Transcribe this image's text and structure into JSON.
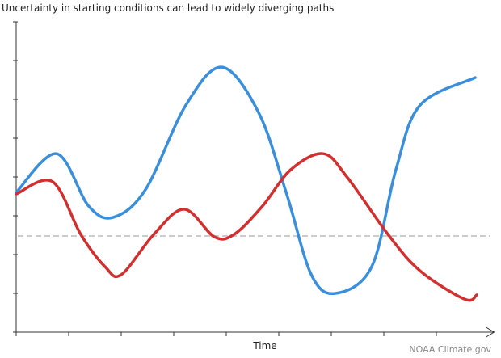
{
  "chart_data": {
    "type": "line",
    "title": "Uncertainty in starting conditions can lead to widely diverging paths",
    "x_label": "Time",
    "credit": "NOAA Climate.gov",
    "xlim": [
      0,
      9.1
    ],
    "xticks": [
      0,
      1,
      2,
      3,
      4,
      5,
      6,
      7,
      8
    ],
    "ylim": [
      0,
      8
    ],
    "yticks": [
      0,
      1,
      2,
      3,
      4,
      5,
      6,
      7,
      8
    ],
    "reference_line": {
      "value": 2.48,
      "color": "#bbbbbb"
    },
    "series": [
      {
        "color": "#3a8fdc",
        "x": [
          0,
          0.77,
          1.38,
          1.85,
          2.46,
          3.23,
          3.92,
          4.62,
          5.15,
          5.62,
          6.08,
          6.77,
          7.23,
          7.69,
          8.74
        ],
        "values": [
          3.6,
          4.6,
          3.25,
          2.96,
          3.67,
          5.85,
          6.83,
          5.65,
          3.56,
          1.48,
          1.0,
          1.69,
          4.19,
          5.85,
          6.56
        ]
      },
      {
        "color": "#d42f2f",
        "x": [
          0,
          0.69,
          1.23,
          1.69,
          2.0,
          2.62,
          3.2,
          3.77,
          4.15,
          4.69,
          5.23,
          5.85,
          6.31,
          7.08,
          7.69,
          8.54,
          8.77
        ],
        "values": [
          3.56,
          3.88,
          2.52,
          1.69,
          1.48,
          2.52,
          3.17,
          2.46,
          2.52,
          3.25,
          4.19,
          4.6,
          3.98,
          2.52,
          1.58,
          0.85,
          0.96
        ]
      }
    ]
  }
}
